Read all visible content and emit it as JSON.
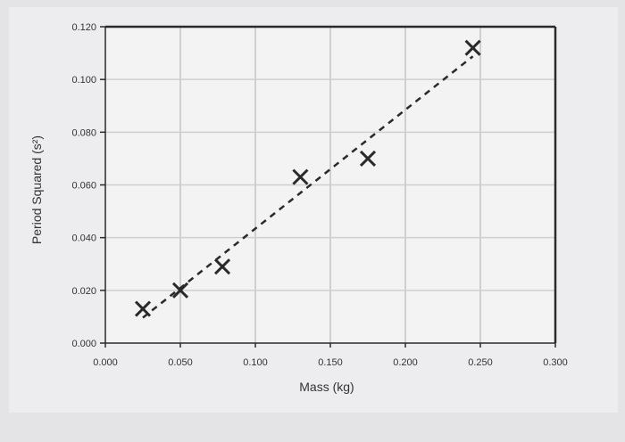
{
  "chart_data": {
    "type": "scatter",
    "title": "",
    "xlabel": "Mass (kg)",
    "ylabel": "Period Squared (s²)",
    "xlim": [
      0,
      0.3
    ],
    "ylim": [
      0,
      0.12
    ],
    "x_ticks": [
      "0.000",
      "0.050",
      "0.100",
      "0.150",
      "0.200",
      "0.250",
      "0.300"
    ],
    "y_ticks": [
      "0.000",
      "0.020",
      "0.040",
      "0.060",
      "0.080",
      "0.100",
      "0.120"
    ],
    "grid": true,
    "marker": "x",
    "trendline": "linear, dashed",
    "series": [
      {
        "x": [
          0.025,
          0.05,
          0.078,
          0.13,
          0.175,
          0.245
        ],
        "y": [
          0.013,
          0.02,
          0.029,
          0.063,
          0.07,
          0.112
        ]
      }
    ],
    "colors": {
      "background": "#e4e4e6",
      "plot_area": "#f3f3f4",
      "frame": "#2a2a2a",
      "grid": "#cfcfd1",
      "marker": "#2a2a2a",
      "trendline": "#2a2a2a"
    }
  }
}
